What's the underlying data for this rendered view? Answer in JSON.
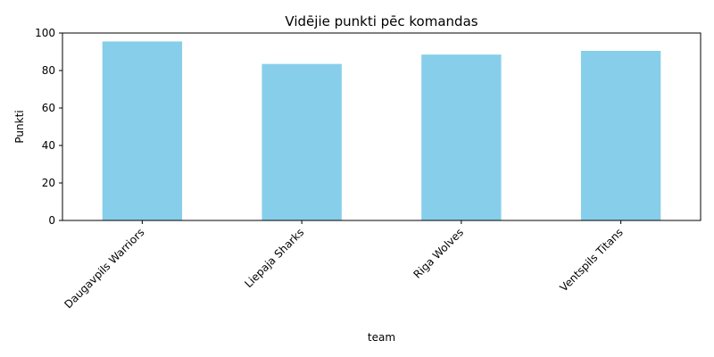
{
  "chart_data": {
    "type": "bar",
    "title": "Vidējie punkti pēc komandas",
    "xlabel": "team",
    "ylabel": "Punkti",
    "categories": [
      "Daugavpils Warriors",
      "Liepaja Sharks",
      "Riga Wolves",
      "Ventspils Titans"
    ],
    "values": [
      95.5,
      83.5,
      88.5,
      90.5
    ],
    "ylim": [
      0,
      100
    ],
    "yticks": [
      "0",
      "20",
      "40",
      "60",
      "80",
      "100"
    ],
    "bar_color": "#87CEEB",
    "grid": false,
    "legend": "none"
  }
}
